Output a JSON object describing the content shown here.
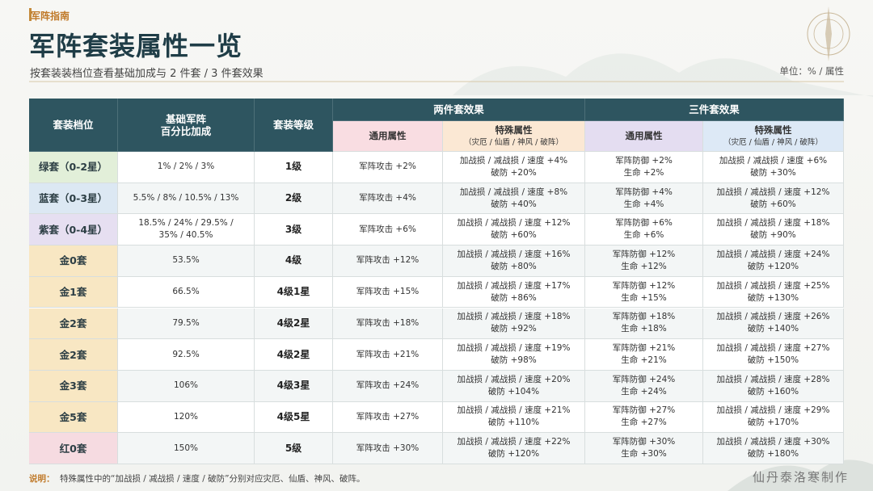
{
  "header": {
    "kicker": "军阵指南",
    "title": "军阵套装属性一览",
    "subtitle": "按套装装档位查看基础加成与 2 件套 / 3 件套效果",
    "unit": "单位：% / 属性"
  },
  "table": {
    "headers": {
      "tier": "套装档位",
      "base": "基础军阵\n百分比加成",
      "level": "套装等级",
      "two_piece": {
        "title": "两件套效果",
        "general": "通用属性",
        "special": "特殊属性",
        "special_note": "（灾厄 / 仙盾 / 神风 / 破阵）"
      },
      "three_piece": {
        "title": "三件套效果",
        "general": "通用属性",
        "special": "特殊属性",
        "special_note": "（灾厄 / 仙盾 / 神风 / 破阵）"
      }
    },
    "rows": [
      [
        "绿套（0-2星）",
        "1% / 2% / 3%",
        "1级",
        "军阵攻击 +2%",
        "加战损 / 减战损 / 速度 +4%\n破防 +20%",
        "军阵防御 +2%\n生命 +2%",
        "加战损 / 减战损 / 速度 +6%\n破防 +30%"
      ],
      [
        "蓝套（0-3星）",
        "5.5% / 8% / 10.5% / 13%",
        "2级",
        "军阵攻击 +4%",
        "加战损 / 减战损 / 速度 +8%\n破防 +40%",
        "军阵防御 +4%\n生命 +4%",
        "加战损 / 减战损 / 速度 +12%\n破防 +60%"
      ],
      [
        "紫套（0-4星）",
        "18.5% / 24% / 29.5% /\n35% / 40.5%",
        "3级",
        "军阵攻击 +6%",
        "加战损 / 减战损 / 速度 +12%\n破防 +60%",
        "军阵防御 +6%\n生命 +6%",
        "加战损 / 减战损 / 速度 +18%\n破防 +90%"
      ],
      [
        "金0套",
        "53.5%",
        "4级",
        "军阵攻击 +12%",
        "加战损 / 减战损 / 速度 +16%\n破防 +80%",
        "军阵防御 +12%\n生命 +12%",
        "加战损 / 减战损 / 速度 +24%\n破防 +120%"
      ],
      [
        "金1套",
        "66.5%",
        "4级1星",
        "军阵攻击 +15%",
        "加战损 / 减战损 / 速度 +17%\n破防 +86%",
        "军阵防御 +12%\n生命 +15%",
        "加战损 / 减战损 / 速度 +25%\n破防 +130%"
      ],
      [
        "金2套",
        "79.5%",
        "4级2星",
        "军阵攻击 +18%",
        "加战损 / 减战损 / 速度 +18%\n破防 +92%",
        "军阵防御 +18%\n生命 +18%",
        "加战损 / 减战损 / 速度 +26%\n破防 +140%"
      ],
      [
        "金2套",
        "92.5%",
        "4级2星",
        "军阵攻击 +21%",
        "加战损 / 减战损 / 速度 +19%\n破防 +98%",
        "军阵防御 +21%\n生命 +21%",
        "加战损 / 减战损 / 速度 +27%\n破防 +150%"
      ],
      [
        "金3套",
        "106%",
        "4级3星",
        "军阵攻击 +24%",
        "加战损 / 减战损 / 速度 +20%\n破防 +104%",
        "军阵防御 +24%\n生命 +24%",
        "加战损 / 减战损 / 速度 +28%\n破防 +160%"
      ],
      [
        "金5套",
        "120%",
        "4级5星",
        "军阵攻击 +27%",
        "加战损 / 减战损 / 速度 +21%\n破防 +110%",
        "军阵防御 +27%\n生命 +27%",
        "加战损 / 减战损 / 速度 +29%\n破防 +170%"
      ],
      [
        "红0套",
        "150%",
        "5级",
        "军阵攻击 +30%",
        "加战损 / 减战损 / 速度 +22%\n破防 +120%",
        "军阵防御 +30%\n生命 +30%",
        "加战损 / 减战损 / 速度 +30%\n破防 +180%"
      ]
    ]
  },
  "footer": {
    "label": "说明：",
    "note": "特殊属性中的“加战损 / 减战损 / 速度 / 破防”分别对应灾厄、仙盾、神风、破阵。",
    "signature": "仙丹泰洛寒制作"
  }
}
